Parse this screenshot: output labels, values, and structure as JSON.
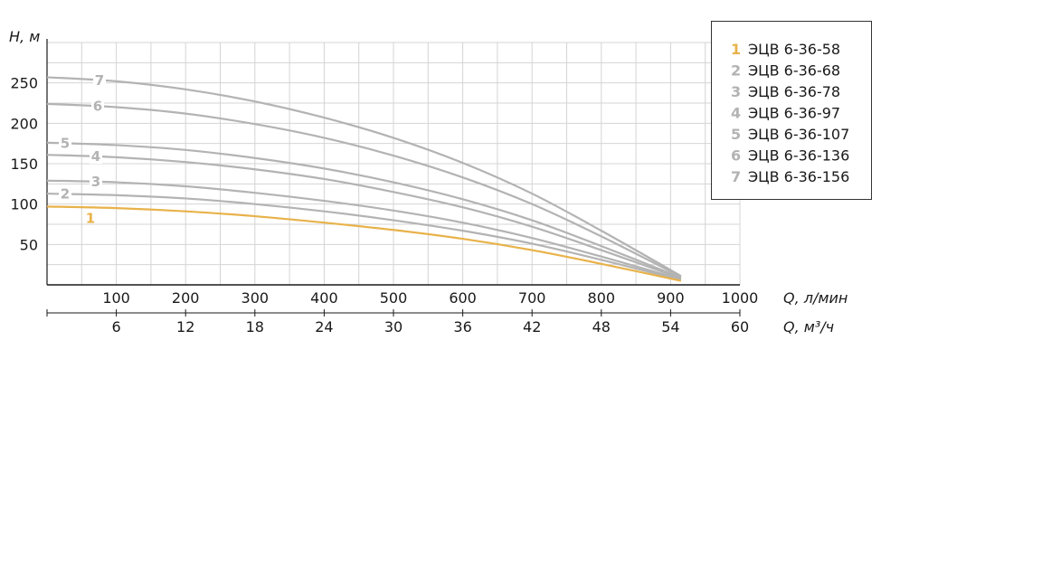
{
  "chart_data": {
    "type": "line",
    "ylabel": "H, м",
    "xlabel": "Q, л/мин",
    "x2label": "Q, м³/ч",
    "xlim": [
      0,
      1000
    ],
    "ylim": [
      0,
      300
    ],
    "x_ticks": [
      "100",
      "200",
      "300",
      "400",
      "500",
      "600",
      "700",
      "800",
      "900",
      "1000"
    ],
    "x2_ticks": [
      "6",
      "12",
      "18",
      "24",
      "30",
      "36",
      "42",
      "48",
      "54",
      "60"
    ],
    "y_ticks": [
      "50",
      "100",
      "150",
      "200",
      "250"
    ],
    "grid": true,
    "legend_position": "top-right",
    "colors": {
      "highlight": "#e8b24a",
      "series": "#b3b3b3",
      "grid": "#d4d4d4",
      "axis": "#1a1a1a"
    },
    "series": [
      {
        "id": "1",
        "name": "ЭЦВ 6-36-58",
        "x": [
          0,
          100,
          200,
          300,
          400,
          500,
          600,
          700,
          800,
          915
        ],
        "values": [
          97,
          95,
          91,
          85,
          77,
          68,
          57,
          43,
          26,
          5
        ]
      },
      {
        "id": "2",
        "name": "ЭЦВ 6-36-68",
        "x": [
          0,
          100,
          200,
          300,
          400,
          500,
          600,
          700,
          800,
          915
        ],
        "values": [
          113,
          111,
          107,
          100,
          91,
          80,
          67,
          51,
          31,
          6
        ]
      },
      {
        "id": "3",
        "name": "ЭЦВ 6-36-78",
        "x": [
          0,
          100,
          200,
          300,
          400,
          500,
          600,
          700,
          800,
          915
        ],
        "values": [
          129,
          127,
          122,
          114,
          104,
          92,
          77,
          58,
          35,
          7
        ]
      },
      {
        "id": "4",
        "name": "ЭЦВ 6-36-97",
        "x": [
          0,
          100,
          200,
          300,
          400,
          500,
          600,
          700,
          800,
          915
        ],
        "values": [
          161,
          158,
          152,
          143,
          131,
          115,
          96,
          72,
          43,
          8
        ]
      },
      {
        "id": "5",
        "name": "ЭЦВ 6-36-107",
        "x": [
          0,
          100,
          200,
          300,
          400,
          500,
          600,
          700,
          800,
          915
        ],
        "values": [
          176,
          173,
          167,
          157,
          144,
          127,
          106,
          80,
          48,
          9
        ]
      },
      {
        "id": "6",
        "name": "ЭЦВ 6-36-136",
        "x": [
          0,
          100,
          200,
          300,
          400,
          500,
          600,
          700,
          800,
          915
        ],
        "values": [
          224,
          220,
          212,
          199,
          182,
          160,
          133,
          100,
          60,
          10
        ]
      },
      {
        "id": "7",
        "name": "ЭЦВ 6-36-156",
        "x": [
          0,
          100,
          200,
          300,
          400,
          500,
          600,
          700,
          800,
          915
        ],
        "values": [
          257,
          252,
          242,
          227,
          207,
          182,
          151,
          113,
          67,
          11
        ]
      }
    ]
  }
}
